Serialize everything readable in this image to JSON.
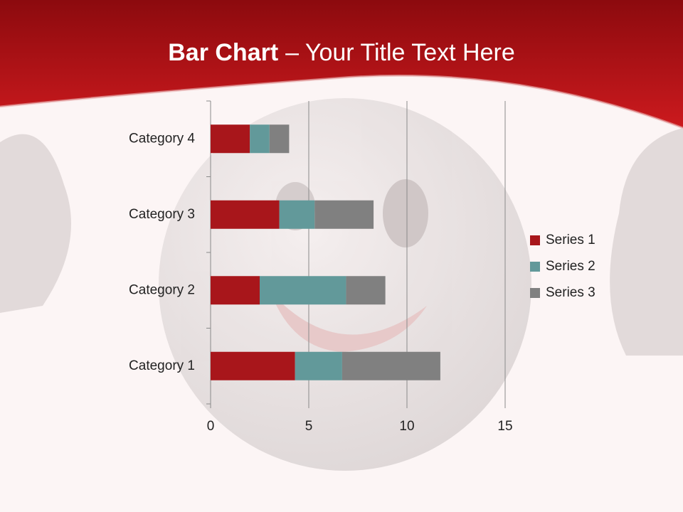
{
  "chart_data": {
    "type": "stacked-bar-horizontal",
    "title": [
      "Bar Chart",
      "– Your Title Text Here"
    ],
    "categories": [
      "Category 1",
      "Category 2",
      "Category 3",
      "Category 4"
    ],
    "series": [
      {
        "name": "Series 1",
        "color": "#a8161b",
        "values": [
          4.3,
          2.5,
          3.5,
          2
        ]
      },
      {
        "name": "Series 2",
        "color": "#62999a",
        "values": [
          2.4,
          4.4,
          1.8,
          1
        ]
      },
      {
        "name": "Series 3",
        "color": "#808080",
        "values": [
          5,
          2,
          3,
          1
        ]
      }
    ],
    "xlim": [
      0,
      15
    ],
    "xticks": [
      0,
      5,
      10,
      15
    ],
    "grid": true,
    "legend": "right"
  }
}
